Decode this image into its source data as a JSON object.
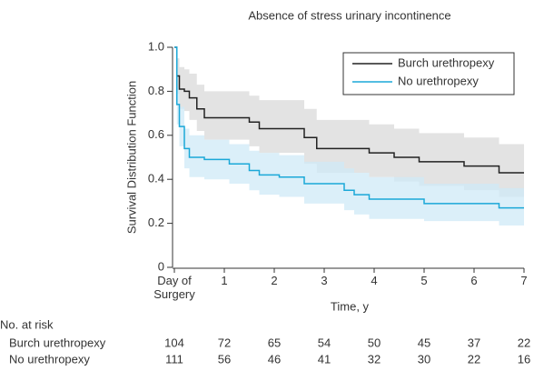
{
  "chart_data": {
    "type": "step",
    "title": "Absence of stress urinary incontinence",
    "xlabel": "Time, y",
    "ylabel": "Survival Distribution Function",
    "x": [
      0,
      0.05,
      0.1,
      0.2,
      0.3,
      0.45,
      0.6,
      1.1,
      1.5,
      1.7,
      2.1,
      2.6,
      2.85,
      3.4,
      3.6,
      3.9,
      4.4,
      4.9,
      5.0,
      5.8,
      6.5,
      7
    ],
    "series": [
      {
        "name": "Burch urethropexy",
        "color": "#222222",
        "band_color": "#d9d9d9",
        "values": [
          1.0,
          0.87,
          0.81,
          0.8,
          0.77,
          0.72,
          0.68,
          0.68,
          0.66,
          0.63,
          0.63,
          0.59,
          0.54,
          0.54,
          0.54,
          0.52,
          0.5,
          0.48,
          0.48,
          0.46,
          0.43,
          0.43
        ],
        "upper": [
          1.0,
          0.95,
          0.91,
          0.9,
          0.88,
          0.83,
          0.8,
          0.8,
          0.78,
          0.76,
          0.76,
          0.72,
          0.67,
          0.67,
          0.67,
          0.65,
          0.63,
          0.61,
          0.61,
          0.59,
          0.56,
          0.56
        ],
        "lower": [
          1.0,
          0.79,
          0.72,
          0.71,
          0.67,
          0.62,
          0.58,
          0.58,
          0.55,
          0.52,
          0.52,
          0.47,
          0.43,
          0.43,
          0.43,
          0.41,
          0.39,
          0.37,
          0.37,
          0.35,
          0.32,
          0.32
        ]
      },
      {
        "name": "No urethropexy",
        "color": "#1ba8d8",
        "band_color": "#cfe9f7",
        "values": [
          1.0,
          0.74,
          0.64,
          0.54,
          0.5,
          0.5,
          0.49,
          0.47,
          0.44,
          0.42,
          0.41,
          0.38,
          0.38,
          0.35,
          0.33,
          0.31,
          0.31,
          0.31,
          0.29,
          0.29,
          0.27,
          0.27
        ],
        "upper": [
          1.0,
          0.82,
          0.73,
          0.63,
          0.6,
          0.6,
          0.58,
          0.56,
          0.53,
          0.52,
          0.51,
          0.48,
          0.48,
          0.45,
          0.43,
          0.41,
          0.41,
          0.41,
          0.38,
          0.38,
          0.36,
          0.36
        ],
        "lower": [
          1.0,
          0.65,
          0.55,
          0.45,
          0.41,
          0.41,
          0.4,
          0.38,
          0.35,
          0.33,
          0.32,
          0.29,
          0.29,
          0.26,
          0.24,
          0.22,
          0.22,
          0.22,
          0.21,
          0.21,
          0.19,
          0.19
        ]
      }
    ],
    "xlim": [
      0,
      7
    ],
    "xticks": [
      {
        "value": 0,
        "label": "Day of Surgery"
      },
      1,
      2,
      3,
      4,
      5,
      6,
      7
    ],
    "ylim": [
      0,
      1
    ],
    "yticks": [
      0,
      0.2,
      0.4,
      0.6,
      0.8,
      {
        "value": 1,
        "label": "1.0"
      }
    ],
    "legend": "upper right",
    "risk_table": {
      "title": "No. at risk",
      "rows": [
        [
          104,
          72,
          65,
          54,
          50,
          45,
          37,
          22
        ],
        [
          111,
          56,
          46,
          41,
          32,
          30,
          22,
          16
        ]
      ]
    }
  }
}
